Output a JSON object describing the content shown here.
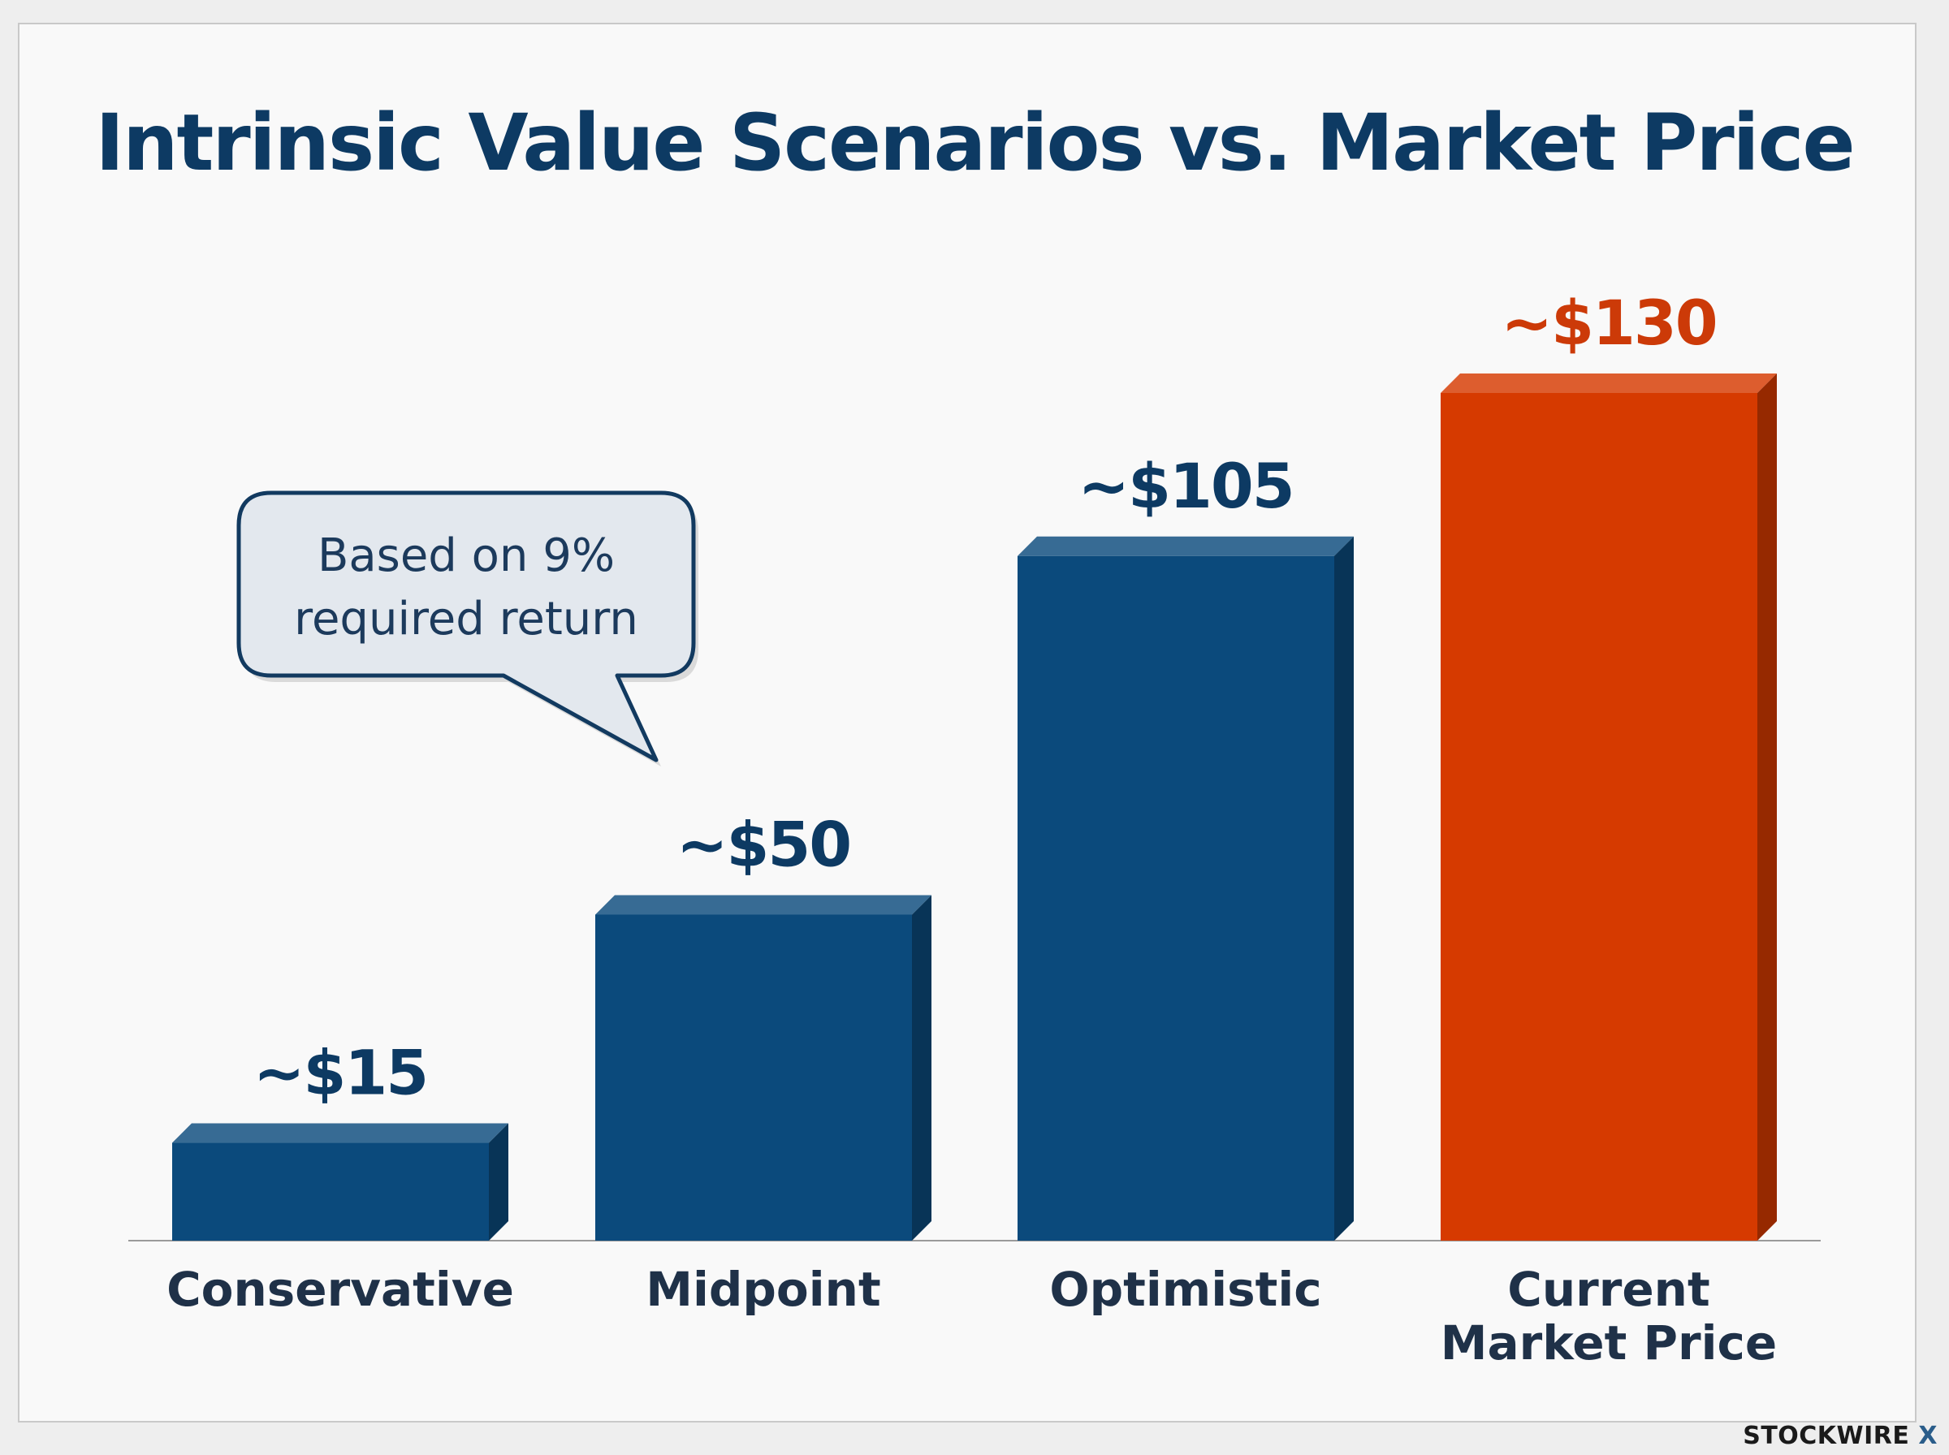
{
  "chart_data": {
    "type": "bar",
    "title": "Intrinsic Value Scenarios vs. Market Price",
    "categories": [
      "Conservative",
      "Midpoint",
      "Optimistic",
      "Current Market Price"
    ],
    "values": [
      15,
      50,
      105,
      130
    ],
    "data_labels": [
      "~$15",
      "~$50",
      "~$105",
      "~$130"
    ],
    "xlabel": "",
    "ylabel": "",
    "ylim": [
      0,
      140
    ],
    "grid": false,
    "colors": [
      "#0b4a7c",
      "#0b4a7c",
      "#0b4a7c",
      "#d63a00"
    ],
    "label_colors": [
      "#0d3a63",
      "#0d3a63",
      "#0d3a63",
      "#cc3a08"
    ],
    "annotation": {
      "lines": [
        "Based on 9%",
        "required return"
      ],
      "points_to": "Midpoint"
    }
  },
  "brand": {
    "name": "STOCKWIRE",
    "mark": "X"
  }
}
